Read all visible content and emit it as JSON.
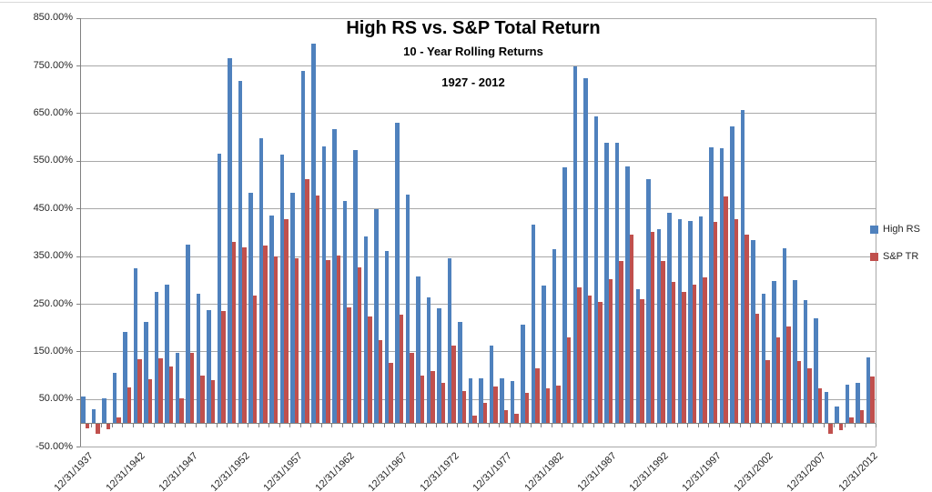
{
  "chart_data": {
    "type": "bar",
    "title": "High RS vs. S&P Total Return",
    "subtitle": "10 - Year Rolling Returns",
    "period": "1927 - 2012",
    "legend_position": "right",
    "grid": true,
    "x_tick_label_interval": 5,
    "y_axis": {
      "min": -50,
      "max": 850,
      "step": 100,
      "tick_values": [
        850,
        750,
        650,
        550,
        450,
        350,
        250,
        150,
        50,
        -50
      ],
      "tick_labels": [
        "850.00%",
        "750.00%",
        "650.00%",
        "550.00%",
        "450.00%",
        "350.00%",
        "250.00%",
        "150.00%",
        "50.00%",
        "-50.00%"
      ]
    },
    "categories": [
      "12/31/1937",
      "12/31/1938",
      "12/31/1939",
      "12/31/1940",
      "12/31/1941",
      "12/31/1942",
      "12/31/1943",
      "12/31/1944",
      "12/31/1945",
      "12/31/1946",
      "12/31/1947",
      "12/31/1948",
      "12/31/1949",
      "12/31/1950",
      "12/31/1951",
      "12/31/1952",
      "12/31/1953",
      "12/31/1954",
      "12/31/1955",
      "12/31/1956",
      "12/31/1957",
      "12/31/1958",
      "12/31/1959",
      "12/31/1960",
      "12/31/1961",
      "12/31/1962",
      "12/31/1963",
      "12/31/1964",
      "12/31/1965",
      "12/31/1966",
      "12/31/1967",
      "12/31/1968",
      "12/31/1969",
      "12/31/1970",
      "12/31/1971",
      "12/31/1972",
      "12/31/1973",
      "12/31/1974",
      "12/31/1975",
      "12/31/1976",
      "12/31/1977",
      "12/31/1978",
      "12/31/1979",
      "12/31/1980",
      "12/31/1981",
      "12/31/1982",
      "12/31/1983",
      "12/31/1984",
      "12/31/1985",
      "12/31/1986",
      "12/31/1987",
      "12/31/1988",
      "12/31/1989",
      "12/31/1990",
      "12/31/1991",
      "12/31/1992",
      "12/31/1993",
      "12/31/1994",
      "12/31/1995",
      "12/31/1996",
      "12/31/1997",
      "12/31/1998",
      "12/31/1999",
      "12/31/2000",
      "12/31/2001",
      "12/31/2002",
      "12/31/2003",
      "12/31/2004",
      "12/31/2005",
      "12/31/2006",
      "12/31/2007",
      "12/31/2008",
      "12/31/2009",
      "12/31/2010",
      "12/31/2011",
      "12/31/2012"
    ],
    "series": [
      {
        "name": "High RS",
        "color": "#4F81BD",
        "values": [
          55,
          29,
          52,
          106,
          190,
          325,
          211,
          275,
          290,
          147,
          375,
          271,
          237,
          565,
          766,
          717,
          482,
          598,
          436,
          564,
          482,
          738,
          795,
          580,
          616,
          466,
          572,
          392,
          448,
          360,
          630,
          480,
          308,
          264,
          240,
          345,
          211,
          93,
          93,
          162,
          93,
          87,
          206,
          416,
          289,
          365,
          536,
          748,
          723,
          643,
          587,
          587,
          538,
          280,
          512,
          407,
          440,
          427,
          424,
          434,
          579,
          577,
          622,
          656,
          383,
          272,
          297,
          366,
          300,
          258,
          220,
          65,
          35,
          80,
          85,
          138
        ]
      },
      {
        "name": "S&P TR",
        "color": "#C0504D",
        "values": [
          -10,
          -20,
          -12,
          11,
          75,
          134,
          91,
          136,
          119,
          52,
          147,
          100,
          89,
          235,
          380,
          369,
          267,
          372,
          350,
          427,
          345,
          511,
          477,
          341,
          351,
          243,
          327,
          224,
          174,
          127,
          227,
          147,
          100,
          108,
          84,
          163,
          66,
          16,
          42,
          76,
          27,
          20,
          63,
          115,
          73,
          78,
          179,
          285,
          268,
          253,
          301,
          340,
          395,
          260,
          400,
          340,
          295,
          274,
          290,
          306,
          421,
          476,
          427,
          395,
          229,
          132,
          179,
          203,
          130,
          114,
          72,
          -20,
          -14,
          12,
          26,
          97
        ]
      }
    ]
  }
}
